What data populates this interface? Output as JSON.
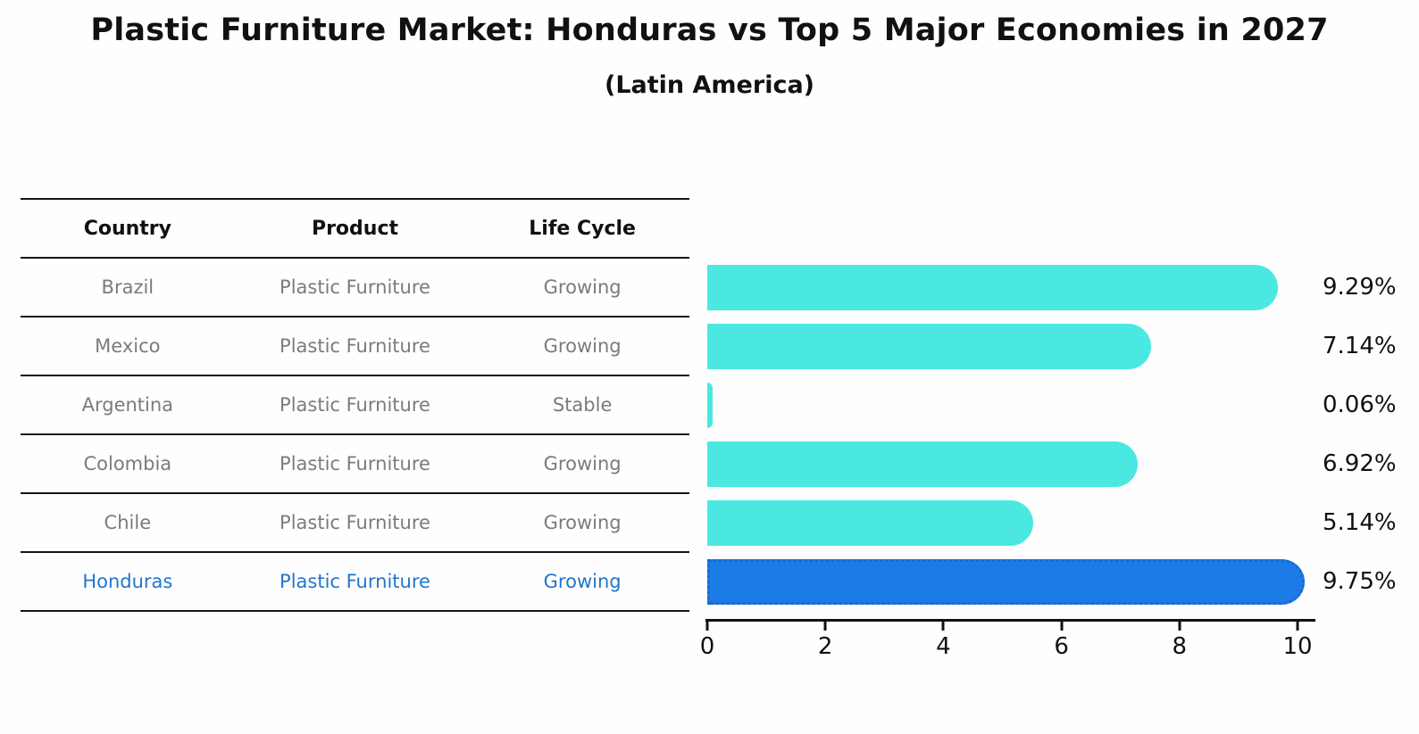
{
  "title": "Plastic Furniture Market: Honduras vs Top 5 Major Economies in 2027",
  "subtitle": "(Latin America)",
  "table": {
    "headers": [
      "Country",
      "Product",
      "Life Cycle"
    ],
    "rows": [
      {
        "country": "Brazil",
        "product": "Plastic Furniture",
        "life_cycle": "Growing",
        "highlight": false
      },
      {
        "country": "Mexico",
        "product": "Plastic Furniture",
        "life_cycle": "Growing",
        "highlight": false
      },
      {
        "country": "Argentina",
        "product": "Plastic Furniture",
        "life_cycle": "Stable",
        "highlight": false
      },
      {
        "country": "Colombia",
        "product": "Plastic Furniture",
        "life_cycle": "Growing",
        "highlight": false
      },
      {
        "country": "Chile",
        "product": "Plastic Furniture",
        "life_cycle": "Growing",
        "highlight": false
      },
      {
        "country": "Honduras",
        "product": "Plastic Furniture",
        "life_cycle": "Growing",
        "highlight": true
      }
    ]
  },
  "chart_data": {
    "type": "bar",
    "orientation": "horizontal",
    "title": "Plastic Furniture Market: Honduras vs Top 5 Major Economies in 2027 (Latin America)",
    "categories": [
      "Brazil",
      "Mexico",
      "Argentina",
      "Colombia",
      "Chile",
      "Honduras"
    ],
    "values": [
      9.29,
      7.14,
      0.06,
      6.92,
      5.14,
      9.75
    ],
    "value_labels": [
      "9.29%",
      "7.14%",
      "0.06%",
      "6.92%",
      "5.14%",
      "9.75%"
    ],
    "unit": "percent",
    "highlight_category": "Honduras",
    "xlabel": "",
    "ylabel": "",
    "xticks": [
      0,
      2,
      4,
      6,
      8,
      10
    ],
    "xlim": [
      0,
      10.26
    ],
    "grid": false,
    "legend": false,
    "colors": {
      "bar": "#4ae8e1",
      "highlight_bar": "#1b7ce5",
      "highlight_border": "#1e66d0",
      "highlight_text": "#2176cc",
      "row_text": "#7b7b7b",
      "axis_text": "#111111"
    }
  }
}
